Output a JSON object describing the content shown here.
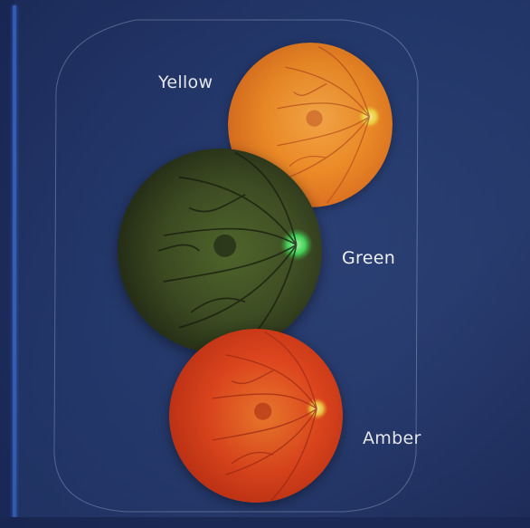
{
  "labels": {
    "yellow": "Yellow",
    "green": "Green",
    "amber": "Amber"
  },
  "colors": {
    "background": "#22386f",
    "accent_line": "#3465c8",
    "yellow_fundus": "#f08a22",
    "green_fundus": "#3a4a1e",
    "amber_fundus": "#e5441a",
    "label_text": "#f1f3f8"
  }
}
